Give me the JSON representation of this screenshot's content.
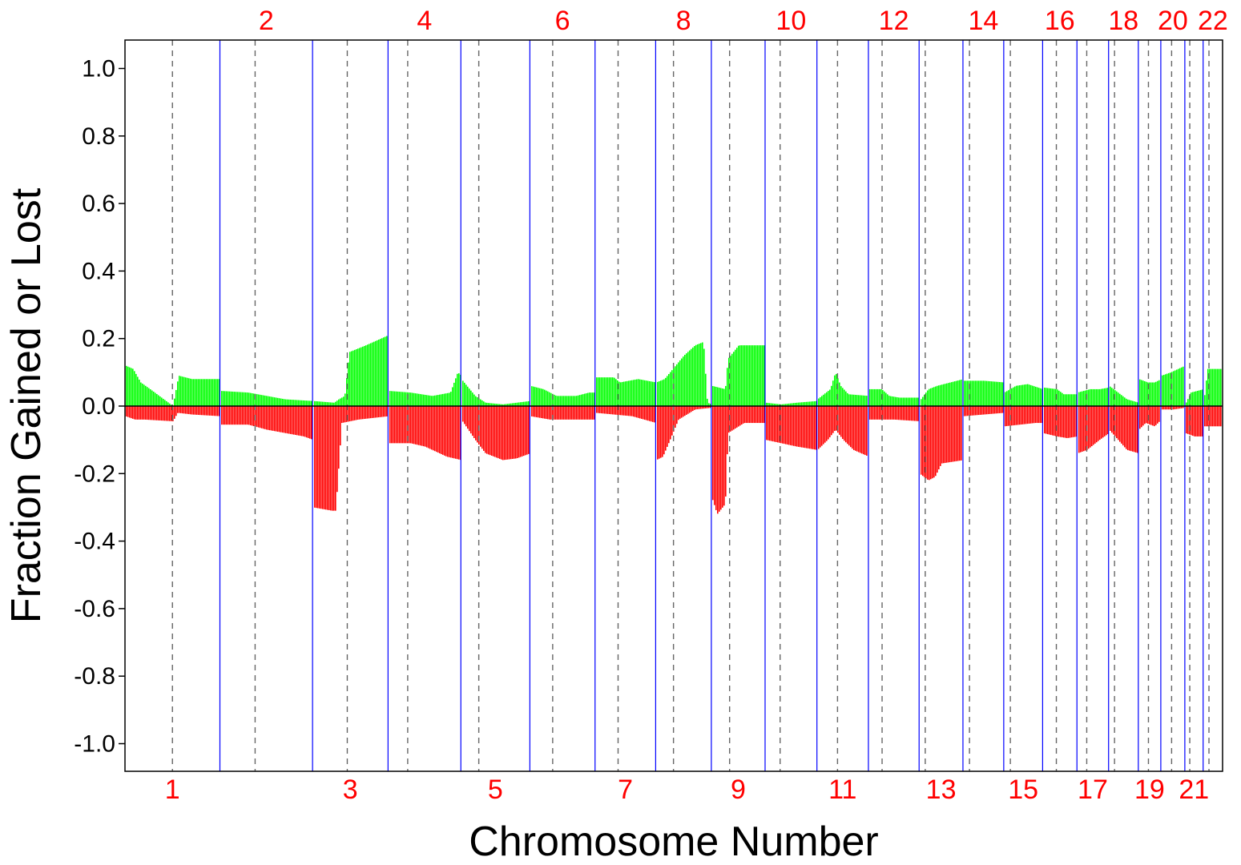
{
  "chart_data": {
    "type": "bar",
    "xlabel": "Chromosome Number",
    "ylabel": "Fraction Gained or Lost",
    "ylim": [
      -1.08,
      1.08
    ],
    "y_ticks": [
      "1.0",
      "0.8",
      "0.6",
      "0.4",
      "0.2",
      "0.0",
      "-0.2",
      "-0.4",
      "-0.6",
      "-0.8",
      "-1.0"
    ],
    "y_tick_values": [
      1.0,
      0.8,
      0.6,
      0.4,
      0.2,
      0.0,
      -0.2,
      -0.4,
      -0.6,
      -0.8,
      -1.0
    ],
    "chromosome_labels_top": [
      "2",
      "4",
      "6",
      "8",
      "10",
      "12",
      "14",
      "16",
      "18",
      "20",
      "22"
    ],
    "chromosome_labels_bottom": [
      "1",
      "3",
      "5",
      "7",
      "9",
      "11",
      "13",
      "15",
      "17",
      "19",
      "21"
    ],
    "chromosome_lengths_mb": [
      249,
      243,
      198,
      191,
      181,
      171,
      159,
      146,
      141,
      136,
      135,
      133,
      115,
      107,
      102,
      90,
      83,
      78,
      59,
      63,
      48,
      51
    ],
    "centromere_fraction": [
      0.5,
      0.38,
      0.46,
      0.27,
      0.26,
      0.35,
      0.38,
      0.32,
      0.34,
      0.29,
      0.4,
      0.27,
      0.14,
      0.16,
      0.17,
      0.4,
      0.31,
      0.2,
      0.45,
      0.45,
      0.27,
      0.3
    ],
    "series": [
      {
        "name": "gain",
        "color": "#00ff00",
        "segments": [
          [
            [
              0,
              0.12
            ],
            [
              0.08,
              0.11
            ],
            [
              0.16,
              0.07
            ],
            [
              0.26,
              0.05
            ],
            [
              0.5,
              0
            ],
            [
              0.56,
              0.09
            ],
            [
              0.7,
              0.08
            ],
            [
              1,
              0.08
            ]
          ],
          [
            [
              0,
              0.045
            ],
            [
              0.3,
              0.04
            ],
            [
              0.5,
              0.03
            ],
            [
              0.7,
              0.02
            ],
            [
              1,
              0.015
            ]
          ],
          [
            [
              0,
              0.015
            ],
            [
              0.28,
              0.01
            ],
            [
              0.34,
              0.02
            ],
            [
              0.42,
              0.03
            ],
            [
              0.48,
              0.16
            ],
            [
              0.7,
              0.18
            ],
            [
              0.9,
              0.2
            ],
            [
              1,
              0.21
            ]
          ],
          [
            [
              0,
              0.045
            ],
            [
              0.3,
              0.04
            ],
            [
              0.6,
              0.03
            ],
            [
              0.85,
              0.04
            ],
            [
              0.95,
              0.1
            ],
            [
              1,
              0.09
            ]
          ],
          [
            [
              0,
              0.08
            ],
            [
              0.2,
              0.03
            ],
            [
              0.35,
              0.01
            ],
            [
              0.6,
              0.005
            ],
            [
              0.8,
              0.01
            ],
            [
              1,
              0.015
            ]
          ],
          [
            [
              0,
              0.06
            ],
            [
              0.2,
              0.05
            ],
            [
              0.4,
              0.03
            ],
            [
              0.7,
              0.03
            ],
            [
              0.9,
              0.04
            ],
            [
              1,
              0.04
            ]
          ],
          [
            [
              0,
              0.085
            ],
            [
              0.3,
              0.085
            ],
            [
              0.4,
              0.07
            ],
            [
              0.7,
              0.08
            ],
            [
              1,
              0.07
            ]
          ],
          [
            [
              0,
              0.07
            ],
            [
              0.15,
              0.08
            ],
            [
              0.3,
              0.11
            ],
            [
              0.5,
              0.15
            ],
            [
              0.7,
              0.18
            ],
            [
              0.85,
              0.19
            ],
            [
              0.92,
              0.01
            ],
            [
              1,
              0.005
            ]
          ],
          [
            [
              0,
              0.06
            ],
            [
              0.25,
              0.05
            ],
            [
              0.3,
              0.14
            ],
            [
              0.5,
              0.18
            ],
            [
              0.75,
              0.18
            ],
            [
              1,
              0.18
            ]
          ],
          [
            [
              0,
              0.01
            ],
            [
              0.3,
              0.005
            ],
            [
              0.6,
              0.01
            ],
            [
              1,
              0.015
            ]
          ],
          [
            [
              0,
              0.02
            ],
            [
              0.25,
              0.05
            ],
            [
              0.35,
              0.1
            ],
            [
              0.45,
              0.06
            ],
            [
              0.6,
              0.035
            ],
            [
              1,
              0.03
            ]
          ],
          [
            [
              0,
              0.05
            ],
            [
              0.25,
              0.05
            ],
            [
              0.4,
              0.03
            ],
            [
              0.6,
              0.025
            ],
            [
              1,
              0.025
            ]
          ],
          [
            [
              0,
              0.015
            ],
            [
              0.2,
              0.05
            ],
            [
              0.4,
              0.06
            ],
            [
              0.7,
              0.07
            ],
            [
              1,
              0.08
            ]
          ],
          [
            [
              0,
              0.075
            ],
            [
              0.5,
              0.075
            ],
            [
              1,
              0.07
            ]
          ],
          [
            [
              0,
              0.04
            ],
            [
              0.3,
              0.06
            ],
            [
              0.6,
              0.065
            ],
            [
              1,
              0.05
            ]
          ],
          [
            [
              0,
              0.055
            ],
            [
              0.4,
              0.05
            ],
            [
              0.6,
              0.035
            ],
            [
              1,
              0.035
            ]
          ],
          [
            [
              0,
              0.04
            ],
            [
              0.4,
              0.05
            ],
            [
              0.7,
              0.05
            ],
            [
              1,
              0.055
            ]
          ],
          [
            [
              0,
              0.06
            ],
            [
              0.3,
              0.04
            ],
            [
              0.6,
              0.02
            ],
            [
              1,
              0.01
            ]
          ],
          [
            [
              0,
              0.08
            ],
            [
              0.4,
              0.07
            ],
            [
              0.7,
              0.07
            ],
            [
              1,
              0.08
            ]
          ],
          [
            [
              0,
              0.09
            ],
            [
              0.4,
              0.1
            ],
            [
              1,
              0.12
            ]
          ],
          [
            [
              0,
              0.005
            ],
            [
              0.3,
              0.04
            ],
            [
              1,
              0.05
            ]
          ],
          [
            [
              0,
              0.005
            ],
            [
              0.2,
              0.11
            ],
            [
              1,
              0.11
            ]
          ]
        ]
      },
      {
        "name": "loss",
        "color": "#ff0000",
        "segments": [
          [
            [
              0,
              -0.03
            ],
            [
              0.1,
              -0.04
            ],
            [
              0.2,
              -0.04
            ],
            [
              0.5,
              -0.045
            ],
            [
              0.55,
              -0.02
            ],
            [
              0.7,
              -0.025
            ],
            [
              1,
              -0.03
            ]
          ],
          [
            [
              0,
              -0.055
            ],
            [
              0.3,
              -0.055
            ],
            [
              0.5,
              -0.07
            ],
            [
              0.7,
              -0.08
            ],
            [
              0.9,
              -0.09
            ],
            [
              1,
              -0.1
            ]
          ],
          [
            [
              0,
              -0.3
            ],
            [
              0.25,
              -0.31
            ],
            [
              0.3,
              -0.31
            ],
            [
              0.38,
              -0.05
            ],
            [
              0.6,
              -0.04
            ],
            [
              1,
              -0.03
            ]
          ],
          [
            [
              0,
              -0.11
            ],
            [
              0.3,
              -0.11
            ],
            [
              0.5,
              -0.12
            ],
            [
              0.8,
              -0.15
            ],
            [
              1,
              -0.16
            ]
          ],
          [
            [
              0,
              -0.04
            ],
            [
              0.2,
              -0.1
            ],
            [
              0.35,
              -0.14
            ],
            [
              0.6,
              -0.16
            ],
            [
              0.8,
              -0.155
            ],
            [
              1,
              -0.14
            ]
          ],
          [
            [
              0,
              -0.03
            ],
            [
              0.3,
              -0.04
            ],
            [
              0.6,
              -0.04
            ],
            [
              1,
              -0.04
            ]
          ],
          [
            [
              0,
              -0.02
            ],
            [
              0.3,
              -0.025
            ],
            [
              0.6,
              -0.03
            ],
            [
              0.8,
              -0.04
            ],
            [
              1,
              -0.05
            ]
          ],
          [
            [
              0,
              -0.16
            ],
            [
              0.12,
              -0.15
            ],
            [
              0.25,
              -0.1
            ],
            [
              0.4,
              -0.04
            ],
            [
              0.7,
              -0.01
            ],
            [
              1,
              -0.005
            ]
          ],
          [
            [
              0,
              -0.27
            ],
            [
              0.1,
              -0.32
            ],
            [
              0.25,
              -0.29
            ],
            [
              0.3,
              -0.08
            ],
            [
              0.6,
              -0.05
            ],
            [
              1,
              -0.05
            ]
          ],
          [
            [
              0,
              -0.1
            ],
            [
              0.3,
              -0.11
            ],
            [
              0.6,
              -0.12
            ],
            [
              1,
              -0.13
            ]
          ],
          [
            [
              0,
              -0.13
            ],
            [
              0.2,
              -0.1
            ],
            [
              0.35,
              -0.07
            ],
            [
              0.5,
              -0.1
            ],
            [
              0.7,
              -0.13
            ],
            [
              1,
              -0.15
            ]
          ],
          [
            [
              0,
              -0.04
            ],
            [
              0.5,
              -0.04
            ],
            [
              1,
              -0.045
            ]
          ],
          [
            [
              0,
              -0.2
            ],
            [
              0.2,
              -0.22
            ],
            [
              0.35,
              -0.21
            ],
            [
              0.5,
              -0.17
            ],
            [
              1,
              -0.16
            ]
          ],
          [
            [
              0,
              -0.03
            ],
            [
              0.5,
              -0.025
            ],
            [
              1,
              -0.02
            ]
          ],
          [
            [
              0,
              -0.06
            ],
            [
              0.4,
              -0.055
            ],
            [
              0.8,
              -0.05
            ],
            [
              1,
              -0.05
            ]
          ],
          [
            [
              0,
              -0.08
            ],
            [
              0.4,
              -0.09
            ],
            [
              0.7,
              -0.095
            ],
            [
              1,
              -0.09
            ]
          ],
          [
            [
              0,
              -0.14
            ],
            [
              0.3,
              -0.13
            ],
            [
              0.7,
              -0.1
            ],
            [
              1,
              -0.08
            ]
          ],
          [
            [
              0,
              -0.07
            ],
            [
              0.3,
              -0.1
            ],
            [
              0.6,
              -0.13
            ],
            [
              1,
              -0.14
            ]
          ],
          [
            [
              0,
              -0.07
            ],
            [
              0.3,
              -0.05
            ],
            [
              0.7,
              -0.06
            ],
            [
              1,
              -0.04
            ]
          ],
          [
            [
              0,
              -0.01
            ],
            [
              0.5,
              -0.01
            ],
            [
              1,
              -0.005
            ]
          ],
          [
            [
              0,
              -0.08
            ],
            [
              0.5,
              -0.09
            ],
            [
              1,
              -0.09
            ]
          ],
          [
            [
              0,
              -0.06
            ],
            [
              1,
              -0.06
            ]
          ]
        ]
      }
    ],
    "colors": {
      "gain": "#00ff00",
      "loss": "#ff0000",
      "chromosome_boundary": "#0000ff",
      "centromere": "#666666",
      "zero_line": "#000000",
      "chromosome_label": "#ff0000"
    },
    "grid": false
  }
}
